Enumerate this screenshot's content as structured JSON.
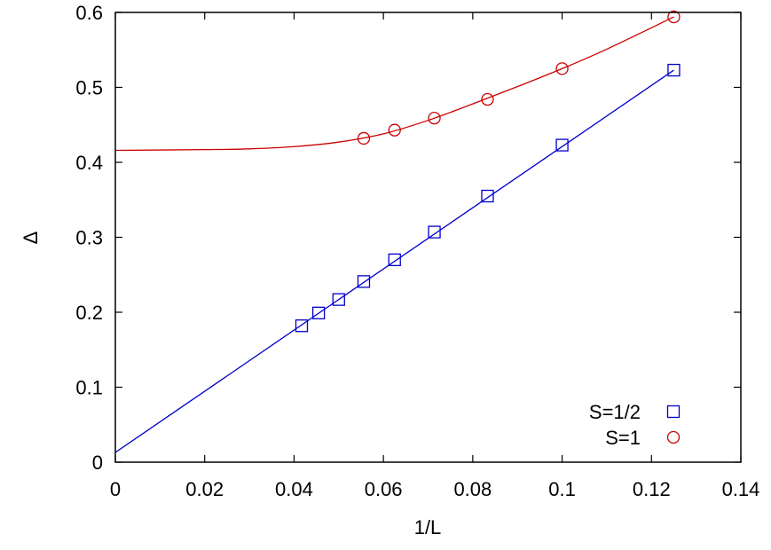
{
  "chart_data": {
    "type": "scatter",
    "title": "",
    "xlabel": "1/L",
    "ylabel": "Δ",
    "xlim": [
      0,
      0.14
    ],
    "ylim": [
      0,
      0.6
    ],
    "xticks": [
      0,
      0.02,
      0.04,
      0.06,
      0.08,
      0.1,
      0.12,
      0.14
    ],
    "xtick_labels": [
      "0",
      "0.02",
      "0.04",
      "0.06",
      "0.08",
      "0.1",
      "0.12",
      "0.14"
    ],
    "yticks": [
      0,
      0.1,
      0.2,
      0.3,
      0.4,
      0.5,
      0.6
    ],
    "ytick_labels": [
      "0",
      "0.1",
      "0.2",
      "0.3",
      "0.4",
      "0.5",
      "0.6"
    ],
    "grid": false,
    "legend_position": "bottom-right",
    "series": [
      {
        "name": "S=1/2",
        "color": "#0000cc",
        "marker": "square",
        "x": [
          0.125,
          0.1,
          0.0833,
          0.0714,
          0.0625,
          0.0556,
          0.05,
          0.0455,
          0.0417
        ],
        "y": [
          0.523,
          0.423,
          0.355,
          0.307,
          0.27,
          0.241,
          0.217,
          0.199,
          0.182
        ],
        "fit": {
          "kind": "linear",
          "intercept": 0.013,
          "slope": 4.08
        }
      },
      {
        "name": "S=1",
        "color": "#cc0000",
        "marker": "circle",
        "x": [
          0.125,
          0.1,
          0.0833,
          0.0714,
          0.0625,
          0.0556
        ],
        "y": [
          0.594,
          0.525,
          0.484,
          0.459,
          0.443,
          0.432
        ],
        "fit": {
          "kind": "curve",
          "x": [
            0,
            0.02,
            0.03,
            0.04,
            0.05,
            0.06,
            0.07,
            0.08,
            0.09,
            0.1,
            0.11,
            0.125
          ],
          "y": [
            0.416,
            0.417,
            0.418,
            0.421,
            0.427,
            0.438,
            0.456,
            0.478,
            0.501,
            0.525,
            0.551,
            0.594
          ]
        }
      }
    ]
  }
}
